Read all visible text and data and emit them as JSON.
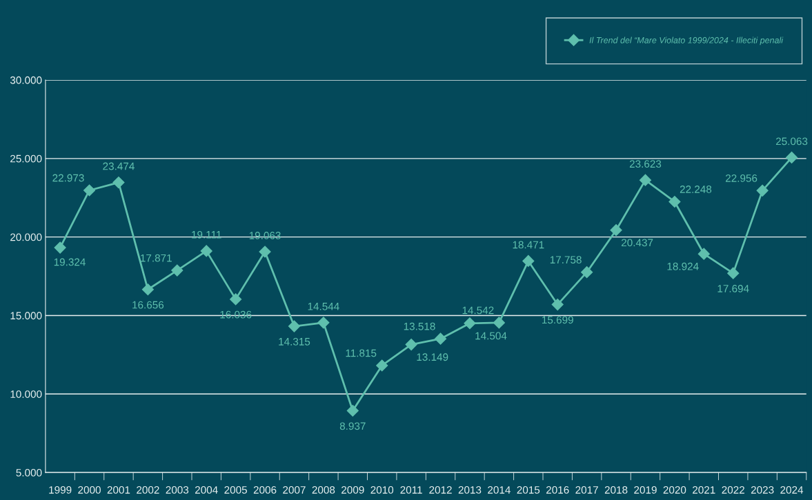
{
  "chart_data": {
    "type": "line",
    "categories": [
      "1999",
      "2000",
      "2001",
      "2002",
      "2003",
      "2004",
      "2005",
      "2006",
      "2007",
      "2008",
      "2009",
      "2010",
      "2011",
      "2012",
      "2013",
      "2014",
      "2015",
      "2016",
      "2017",
      "2018",
      "2019",
      "2020",
      "2021",
      "2022",
      "2023",
      "2024"
    ],
    "series": [
      {
        "name": "Il Trend del “Mare Violato 1999/2024 - Illeciti penali",
        "color": "#5fbfad",
        "values": [
          19324,
          22973,
          23474,
          16656,
          17871,
          19111,
          16036,
          19063,
          14315,
          14544,
          8937,
          11815,
          13149,
          13518,
          14504,
          14542,
          18471,
          15699,
          17758,
          20437,
          23623,
          22248,
          18924,
          17694,
          22956,
          25063
        ],
        "value_labels": [
          "19.324",
          "22.973",
          "23.474",
          "16.656",
          "17.871",
          "19.111",
          "16.036",
          "19.063",
          "14.315",
          "14.544",
          "8.937",
          "11.815",
          "13.149",
          "13.518",
          "14.504",
          "14.542",
          "18.471",
          "15.699",
          "17.758",
          "20.437",
          "23.623",
          "22.248",
          "18.924",
          "17.694",
          "22.956",
          "25.063"
        ]
      }
    ],
    "ylim": [
      5000,
      30000
    ],
    "yticks": [
      {
        "value": 5000,
        "label": "5.000"
      },
      {
        "value": 10000,
        "label": "10.000"
      },
      {
        "value": 15000,
        "label": "15.000"
      },
      {
        "value": 20000,
        "label": "20.000"
      },
      {
        "value": 25000,
        "label": "25.000"
      },
      {
        "value": 30000,
        "label": "30.000"
      }
    ],
    "grid": "y",
    "legend": "top right",
    "marker": "diamond",
    "line_style": "solid"
  }
}
